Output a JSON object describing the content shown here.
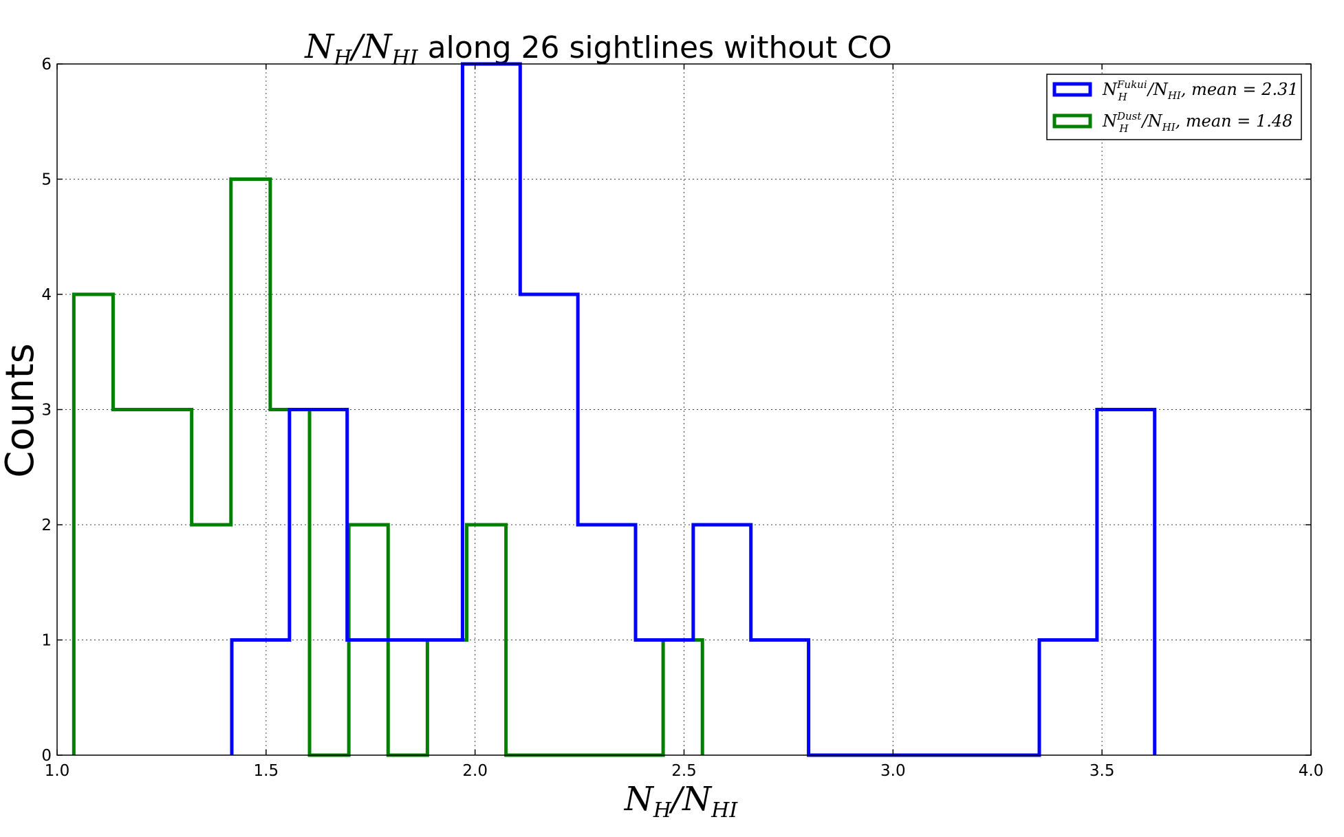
{
  "chart_data": {
    "type": "histogram",
    "title": {
      "math_num": "N",
      "math_num_sub": "H",
      "math_den": "N",
      "math_den_sub": "HI",
      "text": " along 26 sightlines without CO"
    },
    "xlabel": {
      "num": "N",
      "num_sub": "H",
      "den": "N",
      "den_sub": "HI"
    },
    "ylabel": "Counts",
    "xlim": [
      1.0,
      4.0
    ],
    "ylim": [
      0,
      6
    ],
    "x_ticks": [
      "1.0",
      "1.5",
      "2.0",
      "2.5",
      "3.0",
      "3.5",
      "4.0"
    ],
    "y_ticks": [
      "0",
      "1",
      "2",
      "3",
      "4",
      "5",
      "6"
    ],
    "grid": true,
    "legend_position": "top-right",
    "series": [
      {
        "name": "N_H^Fukui/N_HI, mean=2.31",
        "legend": {
          "base": "N",
          "sub": "H",
          "sup": "Fukui",
          "rest": "/N",
          "rest_sub": "HI",
          "tail": ", mean = 2.31"
        },
        "color": "#0000ff",
        "bin_edges": [
          1.418,
          1.556,
          1.694,
          1.832,
          1.97,
          2.108,
          2.246,
          2.384,
          2.522,
          2.66,
          2.798,
          2.936,
          3.074,
          3.212,
          3.35,
          3.488,
          3.626
        ],
        "counts": [
          1,
          3,
          1,
          1,
          6,
          4,
          2,
          1,
          2,
          1,
          0,
          0,
          0,
          0,
          1,
          3
        ]
      },
      {
        "name": "N_H^Dust/N_HI, mean=1.48",
        "legend": {
          "base": "N",
          "sub": "H",
          "sup": "Dust",
          "rest": "/N",
          "rest_sub": "HI",
          "tail": ", mean = 1.48"
        },
        "color": "#008000",
        "bin_edges": [
          1.04,
          1.134,
          1.228,
          1.322,
          1.416,
          1.51,
          1.604,
          1.698,
          1.792,
          1.886,
          1.98,
          2.074,
          2.168,
          2.262,
          2.356,
          2.45,
          2.544
        ],
        "counts": [
          4,
          3,
          3,
          2,
          5,
          3,
          0,
          2,
          0,
          1,
          2,
          0,
          0,
          0,
          0,
          1
        ]
      }
    ]
  }
}
